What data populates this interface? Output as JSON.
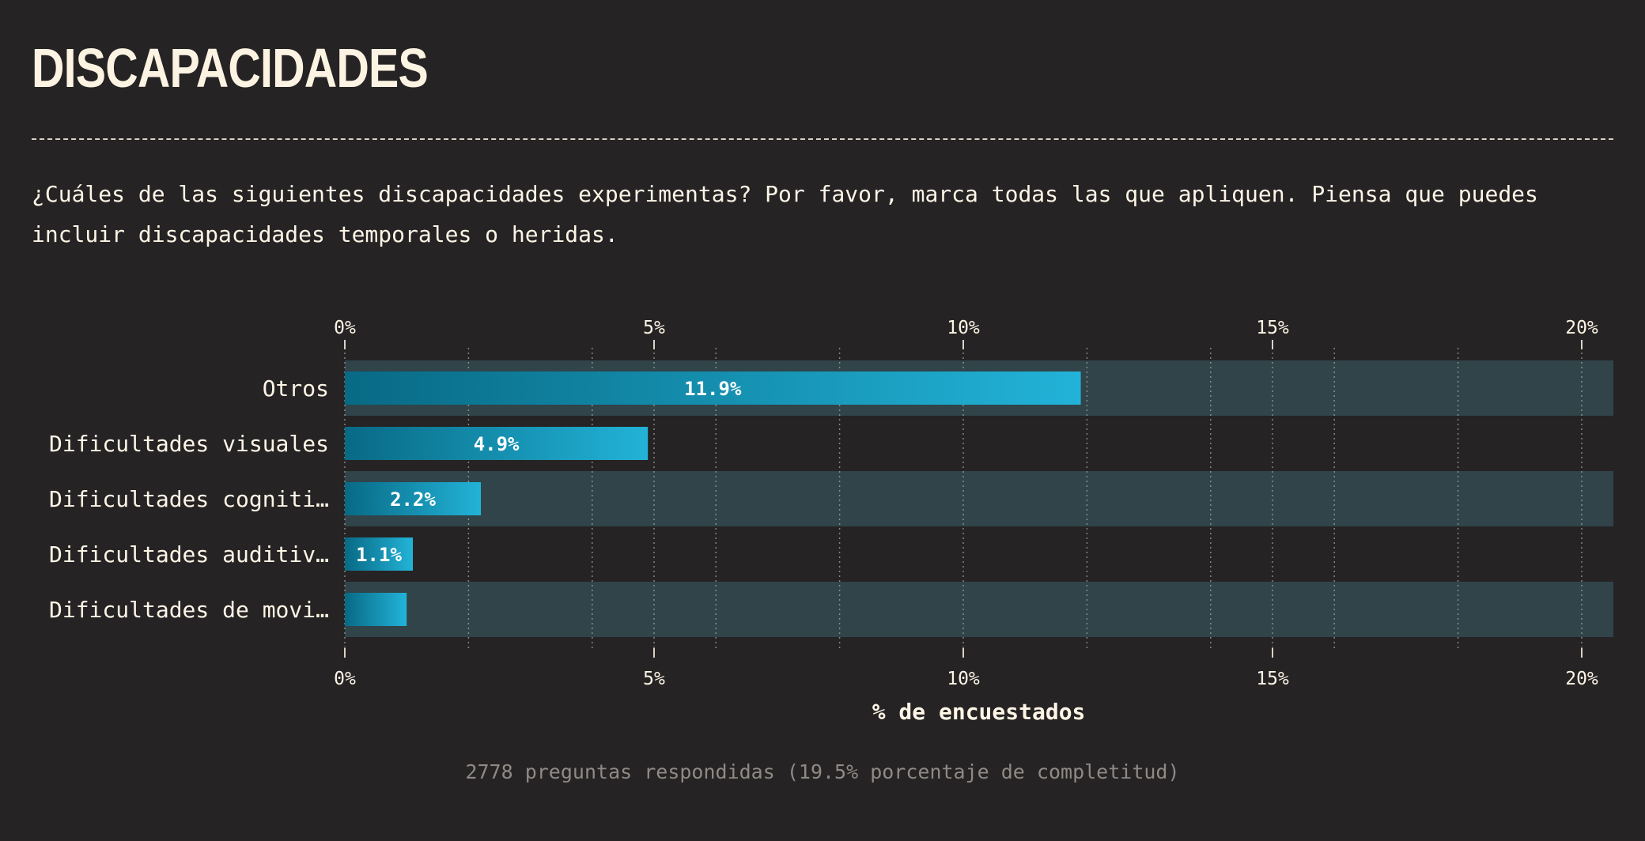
{
  "header": {
    "title": "DISCAPACIDADES",
    "question": "¿Cuáles de las siguientes discapacidades experimentas? Por favor, marca todas las que apliquen. Piensa que puedes incluir discapacidades temporales o heridas."
  },
  "footer": {
    "note": "2778 preguntas respondidas (19.5% porcentaje de completitud)"
  },
  "colors": {
    "background": "#262324",
    "text": "#fdf5e6",
    "bar_start": "#086a85",
    "bar_end": "#22b3d8",
    "row_band": "#30444a",
    "muted": "#8f8a85"
  },
  "chart_data": {
    "type": "bar",
    "orientation": "horizontal",
    "categories": [
      "Otros",
      "Dificultades visuales",
      "Dificultades cogniti…",
      "Dificultades auditiv…",
      "Dificultades de movi…"
    ],
    "values": [
      11.9,
      4.9,
      2.2,
      1.1,
      1.0
    ],
    "data_labels": [
      "11.9%",
      "4.9%",
      "2.2%",
      "1.1%",
      ""
    ],
    "xlabel": "% de encuestados",
    "xlim": [
      0,
      20.5
    ],
    "ticks": [
      0,
      5,
      10,
      15,
      20
    ],
    "tick_labels": [
      "0%",
      "5%",
      "10%",
      "15%",
      "20%"
    ],
    "minor_gridlines": [
      2,
      4,
      6,
      8,
      12,
      14,
      16,
      18
    ],
    "grid": true,
    "tick_axes": "top-and-bottom"
  }
}
